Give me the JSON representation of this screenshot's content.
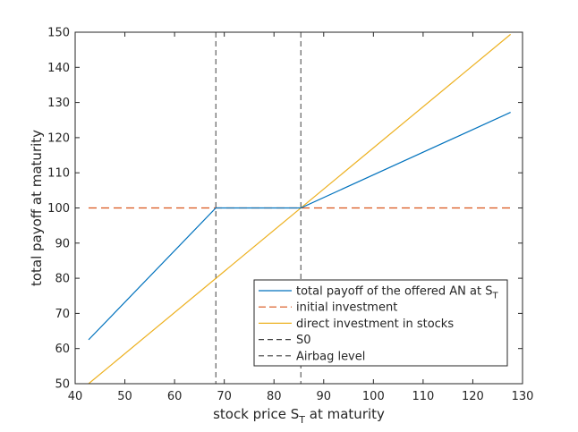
{
  "chart_data": {
    "type": "line",
    "title": "",
    "xlabel_main": "stock price S",
    "xlabel_sub": "T",
    "xlabel_tail": " at maturity",
    "ylabel": "total payoff at maturity",
    "xlim": [
      40,
      130
    ],
    "ylim": [
      50,
      150
    ],
    "xticks": [
      40,
      50,
      60,
      70,
      80,
      90,
      100,
      110,
      120,
      130
    ],
    "yticks": [
      50,
      60,
      70,
      80,
      90,
      100,
      110,
      120,
      130,
      140,
      150
    ],
    "grid": false,
    "legend_position": "bottom-right",
    "series": [
      {
        "name": "total payoff of the offered AN at S",
        "name_sub": "T",
        "style": "solid",
        "color": "#0072BD",
        "x": [
          42.7,
          68.3,
          85.4,
          127.6
        ],
        "y": [
          62.5,
          100,
          100,
          127.2
        ]
      },
      {
        "name": "initial investment",
        "style": "dashed",
        "color": "#D95319",
        "x": [
          42.7,
          127.6
        ],
        "y": [
          100,
          100
        ]
      },
      {
        "name": "direct investment in stocks",
        "style": "solid",
        "color": "#EDB120",
        "x": [
          42.7,
          127.6
        ],
        "y": [
          50,
          149.4
        ]
      },
      {
        "name": "S0",
        "style": "dashed",
        "color": "#404040",
        "vertical_x": 85.4
      },
      {
        "name": "Airbag level",
        "style": "dashed",
        "color": "#404040",
        "vertical_x": 68.3
      }
    ]
  }
}
